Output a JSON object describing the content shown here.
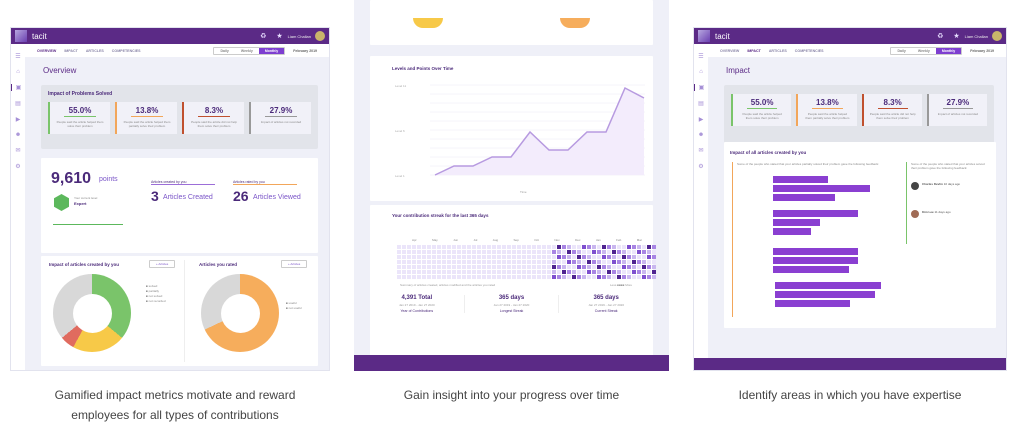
{
  "app": {
    "name": "tacit",
    "user_name": "Liam Challan",
    "user_role": "Team Engineer"
  },
  "tabs": [
    "OVERVIEW",
    "IMPACT",
    "ARTICLES",
    "COMPETENCIES"
  ],
  "range_toggle": {
    "options": [
      "Daily",
      "Weekly",
      "Monthly"
    ],
    "selected": "Monthly"
  },
  "date_filter": "February 2019",
  "panel1": {
    "title": "Overview",
    "impact_title": "Impact of Problems Solved",
    "cards": [
      {
        "value": "55.0%",
        "desc": "People said the article helped them solve their problem",
        "color": "#7ac46a"
      },
      {
        "value": "13.8%",
        "desc": "People said the article helped them partially solve their problem",
        "color": "#f2a65a"
      },
      {
        "value": "8.3%",
        "desc": "People said the article did not help them solve their problem",
        "color": "#c0502e"
      },
      {
        "value": "27.9%",
        "desc": "Impact of articles not recorded",
        "color": "#999999"
      }
    ],
    "points_value": "9,610",
    "points_label": "points",
    "level_caption": "Your current level",
    "level_name": "Expert",
    "created_title": "Articles created by you",
    "created_count": "3",
    "created_label": "Articles Created",
    "viewed_title": "Articles rated by you",
    "viewed_count": "26",
    "viewed_label": "Articles Viewed",
    "donut1_title": "Impact of articles created by you",
    "donut1_button": "+ Articles",
    "donut1_labels": [
      "38.8% (N)",
      "22.2% (N)",
      "33.0% (N)"
    ],
    "donut2_title": "Articles you rated",
    "donut2_button": "+ Articles",
    "donut2_labels": [
      "31.8% (N)",
      "77.0% (N)"
    ]
  },
  "panel2": {
    "chart_title": "Levels and Points Over Time",
    "x_axis_label": "Time",
    "streak_title": "Your contribution streak for the last 365 days",
    "months": [
      "Apr",
      "May",
      "Jun",
      "Jul",
      "Aug",
      "Sep",
      "Oct",
      "Nov",
      "Dec",
      "Jan",
      "Feb",
      "Mar"
    ],
    "streak_caption": "Summary of articles created, articles modified and the articles you rated",
    "legend_less": "Less",
    "legend_more": "More",
    "stats": [
      {
        "value": "4,391 Total",
        "range": "Jan 27 2019 - Jan 27 2020",
        "label": "Year of Contributions"
      },
      {
        "value": "365 days",
        "range": "Jan 27 2019 - Jan 27 2020",
        "label": "Longest Streak"
      },
      {
        "value": "365 days",
        "range": "Jan 27 2019 - Jan 27 2020",
        "label": "Current Streak"
      }
    ]
  },
  "panel3": {
    "title": "Impact",
    "section_title": "Impact of all articles created by you",
    "left_intro": "Some of the people who stated that your articles partially solved their problem gave the following feedback:",
    "right_intro": "Some of the people who stated that your articles solved their problem gave the following feedback:",
    "comments": [
      {
        "author": "Charles Devlin",
        "time": "10 days ago"
      },
      {
        "author": "Kim Lee",
        "time": "11 days ago"
      }
    ]
  },
  "captions": [
    "Gamified impact metrics motivate and reward employees for all types of contributions",
    "Gain insight into your progress over time",
    "Identify areas in which you have expertise"
  ],
  "colors": {
    "brand": "#5b2a86",
    "accent": "#8a3fd1",
    "green": "#7ac46a",
    "orange": "#f6ad5c",
    "yellow": "#f7c948",
    "red": "#e06b5f",
    "gray": "#d8d8d8"
  }
}
